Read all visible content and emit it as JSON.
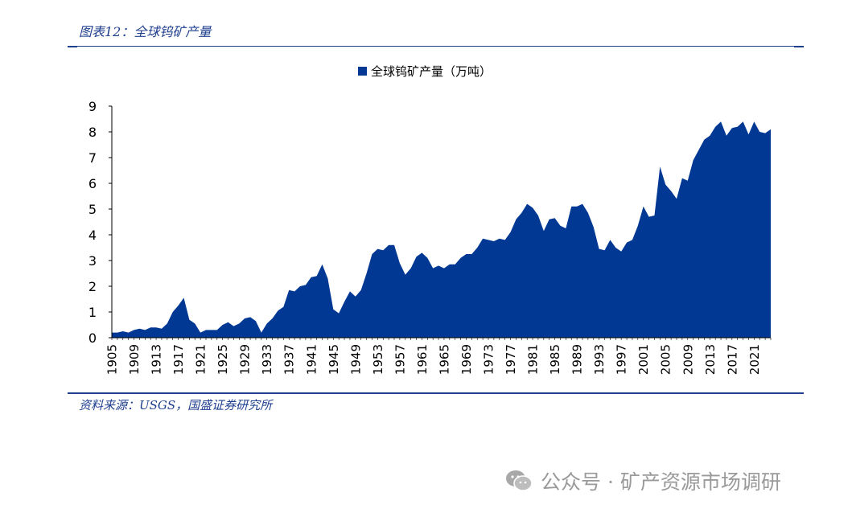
{
  "header": {
    "title": "图表12：全球钨矿产量"
  },
  "footer": {
    "source": "资料来源：USGS，国盛证券研究所"
  },
  "watermark": {
    "text": "公众号 · 矿产资源市场调研",
    "icon": "wechat-icon"
  },
  "colors": {
    "accent": "#003893",
    "rule": "#1f3f8f",
    "watermark": "#9a9a9a"
  },
  "chart_data": {
    "type": "area",
    "legend": "全球钨矿产量（万吨）",
    "legend_position": "top-center",
    "grid": false,
    "ylim": [
      0,
      9
    ],
    "yticks": [
      "0",
      "1",
      "2",
      "3",
      "4",
      "5",
      "6",
      "7",
      "8",
      "9"
    ],
    "xticks": [
      "1905",
      "1909",
      "1913",
      "1917",
      "1921",
      "1925",
      "1929",
      "1933",
      "1937",
      "1941",
      "1945",
      "1949",
      "1953",
      "1957",
      "1961",
      "1965",
      "1969",
      "1973",
      "1977",
      "1981",
      "1985",
      "1989",
      "1993",
      "1997",
      "2001",
      "2005",
      "2009",
      "2013",
      "2017",
      "2021"
    ],
    "x": [
      1905,
      1906,
      1907,
      1908,
      1909,
      1910,
      1911,
      1912,
      1913,
      1914,
      1915,
      1916,
      1917,
      1918,
      1919,
      1920,
      1921,
      1922,
      1923,
      1924,
      1925,
      1926,
      1927,
      1928,
      1929,
      1930,
      1931,
      1932,
      1933,
      1934,
      1935,
      1936,
      1937,
      1938,
      1939,
      1940,
      1941,
      1942,
      1943,
      1944,
      1945,
      1946,
      1947,
      1948,
      1949,
      1950,
      1951,
      1952,
      1953,
      1954,
      1955,
      1956,
      1957,
      1958,
      1959,
      1960,
      1961,
      1962,
      1963,
      1964,
      1965,
      1966,
      1967,
      1968,
      1969,
      1970,
      1971,
      1972,
      1973,
      1974,
      1975,
      1976,
      1977,
      1978,
      1979,
      1980,
      1981,
      1982,
      1983,
      1984,
      1985,
      1986,
      1987,
      1988,
      1989,
      1990,
      1991,
      1992,
      1993,
      1994,
      1995,
      1996,
      1997,
      1998,
      1999,
      2000,
      2001,
      2002,
      2003,
      2004,
      2005,
      2006,
      2007,
      2008,
      2009,
      2010,
      2011,
      2012,
      2013,
      2014,
      2015,
      2016,
      2017,
      2018,
      2019,
      2020,
      2021,
      2022,
      2023,
      2024
    ],
    "values": [
      0.2,
      0.2,
      0.25,
      0.2,
      0.3,
      0.35,
      0.3,
      0.4,
      0.4,
      0.35,
      0.55,
      1.0,
      1.25,
      1.55,
      0.7,
      0.55,
      0.2,
      0.3,
      0.3,
      0.3,
      0.5,
      0.6,
      0.45,
      0.55,
      0.75,
      0.8,
      0.65,
      0.2,
      0.55,
      0.75,
      1.05,
      1.2,
      1.85,
      1.8,
      2.0,
      2.05,
      2.35,
      2.4,
      2.85,
      2.3,
      1.1,
      0.95,
      1.4,
      1.8,
      1.6,
      1.85,
      2.5,
      3.25,
      3.45,
      3.4,
      3.6,
      3.6,
      2.9,
      2.45,
      2.7,
      3.15,
      3.3,
      3.1,
      2.7,
      2.8,
      2.7,
      2.85,
      2.85,
      3.1,
      3.25,
      3.25,
      3.5,
      3.85,
      3.8,
      3.75,
      3.85,
      3.8,
      4.1,
      4.6,
      4.85,
      5.2,
      5.05,
      4.75,
      4.15,
      4.6,
      4.65,
      4.35,
      4.25,
      5.1,
      5.1,
      5.2,
      4.85,
      4.3,
      3.45,
      3.4,
      3.8,
      3.5,
      3.35,
      3.7,
      3.8,
      4.35,
      5.1,
      4.7,
      4.75,
      6.65,
      5.95,
      5.7,
      5.4,
      6.2,
      6.1,
      6.9,
      7.3,
      7.7,
      7.85,
      8.2,
      8.4,
      7.85,
      8.15,
      8.2,
      8.4,
      7.9,
      8.4,
      8.0,
      7.95,
      8.1
    ]
  }
}
